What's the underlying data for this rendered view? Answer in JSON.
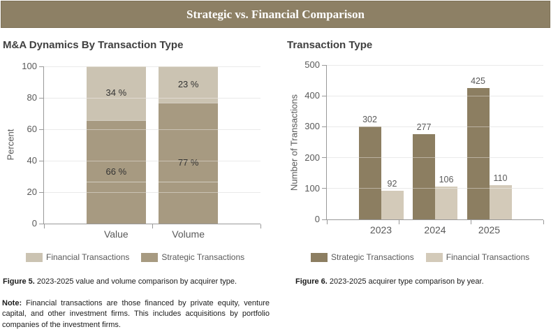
{
  "header": {
    "title": "Strategic vs. Financial Comparison"
  },
  "colors": {
    "header_bg": "#8d8065",
    "header_border": "#7d7156",
    "header_text": "#ffffff",
    "left_strategic": "#a79a81",
    "left_financial": "#cbc3b2",
    "right_strategic": "#8c7e61",
    "right_financial": "#d3cab9",
    "gridline": "#dcdcdc",
    "axis": "#999999",
    "tick_text": "#595959",
    "title_text": "#404040",
    "caption_text": "#1a1a1a"
  },
  "chart_data": [
    {
      "id": "left",
      "type": "bar",
      "mode": "stacked",
      "title": "M&A Dynamics By Transaction Type",
      "ylabel": "Percent",
      "xlabel": "",
      "categories": [
        "Value",
        "Volume"
      ],
      "series": [
        {
          "name": "Strategic Transactions",
          "values": [
            66,
            77
          ],
          "labels": [
            "66 %",
            "77 %"
          ],
          "color": "#a79a81"
        },
        {
          "name": "Financial Transactions",
          "values": [
            34,
            23
          ],
          "labels": [
            "34 %",
            "23 %"
          ],
          "color": "#cbc3b2"
        }
      ],
      "ylim": [
        0,
        100
      ],
      "ytick_step": 20,
      "grid": true,
      "legend_position": "bottom",
      "legend": [
        {
          "label": "Financial Transactions",
          "color": "#cbc3b2"
        },
        {
          "label": "Strategic Transactions",
          "color": "#a79a81"
        }
      ]
    },
    {
      "id": "right",
      "type": "bar",
      "mode": "grouped",
      "title": "Transaction Type",
      "ylabel": "Number of Transactions",
      "xlabel": "",
      "categories": [
        "2023",
        "2024",
        "2025"
      ],
      "series": [
        {
          "name": "Strategic Transactions",
          "values": [
            302,
            277,
            425
          ],
          "color": "#8c7e61"
        },
        {
          "name": "Financial Transactions",
          "values": [
            92,
            106,
            110
          ],
          "color": "#d3cab9"
        }
      ],
      "ylim": [
        0,
        500
      ],
      "ytick_step": 100,
      "grid": true,
      "legend_position": "bottom",
      "legend": [
        {
          "label": "Strategic Transactions",
          "color": "#8c7e61"
        },
        {
          "label": "Financial Transactions",
          "color": "#d3cab9"
        }
      ]
    }
  ],
  "captions": {
    "fig5_label": "Figure 5.",
    "fig5_text": " 2023-2025 value and volume comparison by acquirer type.",
    "fig6_label": "Figure 6.",
    "fig6_text": " 2023-2025 acquirer type comparison by year.",
    "note_label": "Note:",
    "note_text": " Financial transactions are those financed by private equity, venture capital, and other investment firms. This includes acquisitions by portfolio companies of the investment firms."
  }
}
